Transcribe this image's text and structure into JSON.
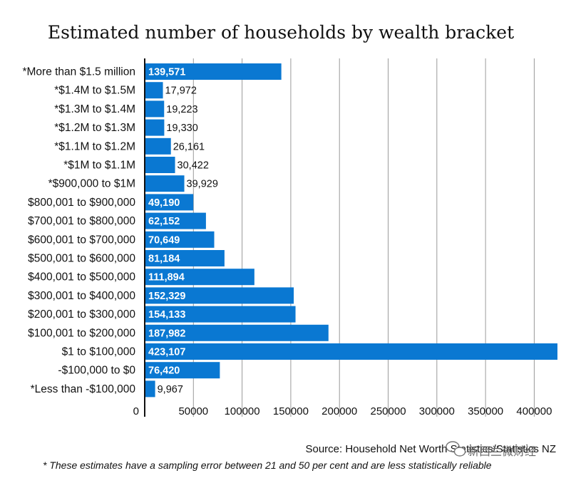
{
  "chart_data": {
    "type": "bar",
    "orientation": "horizontal",
    "title": "Estimated number of households by wealth bracket",
    "categories": [
      "*More than $1.5 million",
      "*$1.4M to $1.5M",
      "*$1.3M to $1.4M",
      "*$1.2M to $1.3M",
      "*$1.1M to $1.2M",
      "*$1M to $1.1M",
      "*$900,000 to $1M",
      "$800,001 to $900,000",
      "$700,001 to $800,000",
      "$600,001 to $700,000",
      "$500,001 to $600,000",
      "$400,001 to $500,000",
      "$300,001 to $400,000",
      "$200,001 to $300,000",
      "$100,001 to $200,000",
      "$1 to $100,000",
      "-$100,000 to $0",
      "*Less than -$100,000"
    ],
    "values": [
      139571,
      17972,
      19223,
      19330,
      26161,
      30422,
      39929,
      49190,
      62152,
      70649,
      81184,
      111894,
      152329,
      154133,
      187982,
      423107,
      76420,
      9967
    ],
    "value_labels": [
      "139,571",
      "17,972",
      "19,223",
      "19,330",
      "26,161",
      "30,422",
      "39,929",
      "49,190",
      "62,152",
      "70,649",
      "81,184",
      "111,894",
      "152,329",
      "154,133",
      "187,982",
      "423,107",
      "76,420",
      "9,967"
    ],
    "x_ticks": [
      0,
      50000,
      100000,
      150000,
      200000,
      250000,
      300000,
      350000,
      400000
    ],
    "x_tick_labels": [
      "0",
      "50000",
      "100000",
      "150000",
      "200000",
      "250000",
      "300000",
      "350000",
      "400000"
    ],
    "xlim": [
      0,
      423107
    ],
    "grid": true,
    "bar_color": "#0a78d2",
    "xlabel": "",
    "ylabel": ""
  },
  "source": "Source: Household Net Worth Statistics/Statistics NZ",
  "footnote": "* These estimates have a sampling error between 21 and 50 per cent and are less statistically reliable",
  "watermark": {
    "text": "新西兰微财经",
    "icon": "wechat-icon"
  }
}
